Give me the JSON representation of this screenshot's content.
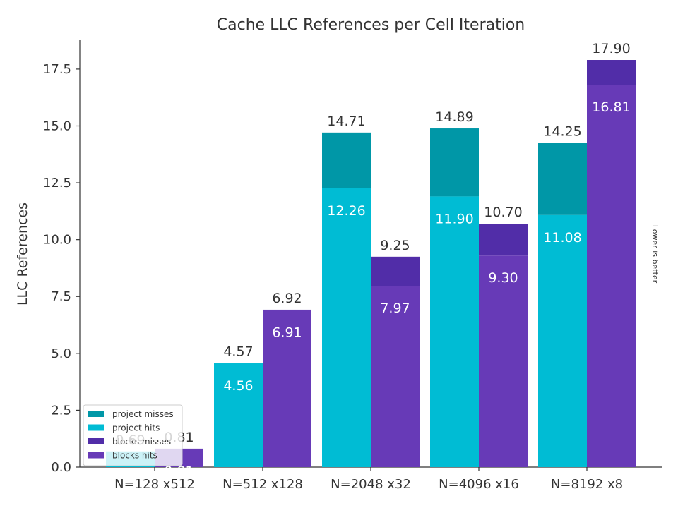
{
  "chart_data": {
    "type": "bar",
    "title": "Cache LLC References per Cell Iteration",
    "ylabel": "LLC References",
    "side_note": "Lower is better",
    "categories": [
      "N=128 x512",
      "N=512 x128",
      "N=2048 x32",
      "N=4096 x16",
      "N=8192 x8"
    ],
    "ylim": [
      0,
      18.8
    ],
    "yticks": [
      0.0,
      2.5,
      5.0,
      7.5,
      10.0,
      12.5,
      15.0,
      17.5
    ],
    "ytick_labels": [
      "0.0",
      "2.5",
      "5.0",
      "7.5",
      "10.0",
      "12.5",
      "15.0",
      "17.5"
    ],
    "series": [
      {
        "name": "project",
        "total": [
          0.69,
          4.57,
          14.71,
          14.89,
          14.25
        ],
        "hits": [
          0.69,
          4.56,
          12.26,
          11.9,
          11.08
        ],
        "total_labels": [
          "0.69",
          "4.57",
          "14.71",
          "14.89",
          "14.25"
        ],
        "hits_labels": [
          "0.69",
          "4.56",
          "12.26",
          "11.90",
          "11.08"
        ],
        "misses_color": "#0097a7",
        "hits_color": "#00bcd4"
      },
      {
        "name": "blocks",
        "total": [
          0.81,
          6.92,
          9.25,
          10.7,
          17.9
        ],
        "hits": [
          0.81,
          6.91,
          7.97,
          9.3,
          16.81
        ],
        "total_labels": [
          "0.81",
          "6.92",
          "9.25",
          "10.70",
          "17.90"
        ],
        "hits_labels": [
          "0.81",
          "6.91",
          "7.97",
          "9.30",
          "16.81"
        ],
        "misses_color": "#512da8",
        "hits_color": "#673ab7"
      }
    ],
    "legend": {
      "placement": "lower-left",
      "entries": [
        {
          "label": "project  misses",
          "color": "#0097a7"
        },
        {
          "label": "project  hits",
          "color": "#00bcd4"
        },
        {
          "label": "blocks  misses",
          "color": "#512da8"
        },
        {
          "label": "blocks  hits",
          "color": "#673ab7"
        }
      ]
    },
    "grid": false
  }
}
